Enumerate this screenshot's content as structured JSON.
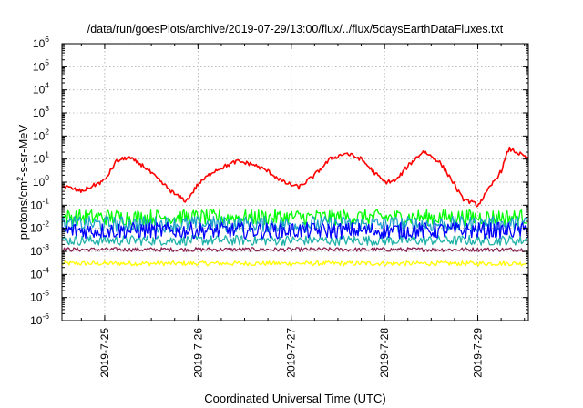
{
  "chart_data": {
    "type": "line",
    "title": "/data/run/goesPlots/archive/2019-07-29/13:00/flux/../flux/5daysEarthDataFluxes.txt",
    "xlabel": "Coordinated Universal Time (UTC)",
    "ylabel": "protons/cm²-s-sr-MeV",
    "ylabel_parts": {
      "pre": "protons/cm",
      "sup": "2",
      "post": "-s-sr-MeV"
    },
    "yscale": "log",
    "ylim": [
      1e-06,
      1000000.0
    ],
    "y_ticks": [
      {
        "base": "10",
        "exp": "-6",
        "value": 1e-06
      },
      {
        "base": "10",
        "exp": "-5",
        "value": 1e-05
      },
      {
        "base": "10",
        "exp": "-4",
        "value": 0.0001
      },
      {
        "base": "10",
        "exp": "-3",
        "value": 0.001
      },
      {
        "base": "10",
        "exp": "-2",
        "value": 0.01
      },
      {
        "base": "10",
        "exp": "-1",
        "value": 0.1
      },
      {
        "base": "10",
        "exp": "0",
        "value": 1.0
      },
      {
        "base": "10",
        "exp": "1",
        "value": 10.0
      },
      {
        "base": "10",
        "exp": "2",
        "value": 100.0
      },
      {
        "base": "10",
        "exp": "3",
        "value": 1000.0
      },
      {
        "base": "10",
        "exp": "4",
        "value": 10000.0
      },
      {
        "base": "10",
        "exp": "5",
        "value": 100000.0
      },
      {
        "base": "10",
        "exp": "6",
        "value": 1000000.0
      }
    ],
    "xlim": [
      "2019-07-24T13:00",
      "2019-07-29T13:00"
    ],
    "x_ticks": [
      {
        "label": "2019-7-25",
        "value": "2019-07-25"
      },
      {
        "label": "2019-7-26",
        "value": "2019-07-26"
      },
      {
        "label": "2019-7-27",
        "value": "2019-07-27"
      },
      {
        "label": "2019-7-28",
        "value": "2019-07-28"
      },
      {
        "label": "2019-7-29",
        "value": "2019-07-29"
      }
    ],
    "grid": true,
    "series": [
      {
        "color": "#ff0000",
        "x": [
          "2019-07-24T13:00",
          "2019-07-24T18:00",
          "2019-07-25T00:00",
          "2019-07-25T03:00",
          "2019-07-25T06:00",
          "2019-07-25T10:00",
          "2019-07-25T14:00",
          "2019-07-25T18:00",
          "2019-07-25T21:00",
          "2019-07-26T00:00",
          "2019-07-26T04:00",
          "2019-07-26T10:00",
          "2019-07-26T14:00",
          "2019-07-26T18:00",
          "2019-07-26T22:00",
          "2019-07-27T02:00",
          "2019-07-27T06:00",
          "2019-07-27T10:00",
          "2019-07-27T14:00",
          "2019-07-27T18:00",
          "2019-07-27T21:00",
          "2019-07-28T00:00",
          "2019-07-28T03:00",
          "2019-07-28T06:00",
          "2019-07-28T10:00",
          "2019-07-28T14:00",
          "2019-07-28T17:00",
          "2019-07-28T20:00",
          "2019-07-29T00:00",
          "2019-07-29T02:00",
          "2019-07-29T04:00",
          "2019-07-29T06:00",
          "2019-07-29T08:00",
          "2019-07-29T10:00",
          "2019-07-29T13:00"
        ],
        "y": [
          0.7,
          0.4,
          1.2,
          8,
          12,
          5,
          1.2,
          0.3,
          0.15,
          0.8,
          3,
          8,
          6,
          3,
          1,
          0.6,
          2,
          10,
          18,
          10,
          3,
          1,
          1.2,
          5,
          22,
          8,
          1.5,
          0.2,
          0.1,
          0.3,
          1,
          3,
          28,
          20,
          10
        ]
      },
      {
        "color": "#00ff00",
        "x": [
          "2019-07-24T13:00",
          "2019-07-29T13:00"
        ],
        "y": [
          0.03,
          0.03
        ]
      },
      {
        "color": "#1fa0c8",
        "x": [
          "2019-07-24T13:00",
          "2019-07-29T13:00"
        ],
        "y": [
          0.015,
          0.015
        ]
      },
      {
        "color": "#0000ff",
        "x": [
          "2019-07-24T13:00",
          "2019-07-29T13:00"
        ],
        "y": [
          0.008,
          0.008
        ]
      },
      {
        "color": "#20b2aa",
        "x": [
          "2019-07-24T13:00",
          "2019-07-29T13:00"
        ],
        "y": [
          0.003,
          0.003
        ]
      },
      {
        "color": "#8b2252",
        "x": [
          "2019-07-24T13:00",
          "2019-07-29T13:00"
        ],
        "y": [
          0.0012,
          0.0012
        ]
      },
      {
        "color": "#ffff00",
        "x": [
          "2019-07-24T13:00",
          "2019-07-29T13:00"
        ],
        "y": [
          0.0003,
          0.0003
        ]
      }
    ]
  }
}
